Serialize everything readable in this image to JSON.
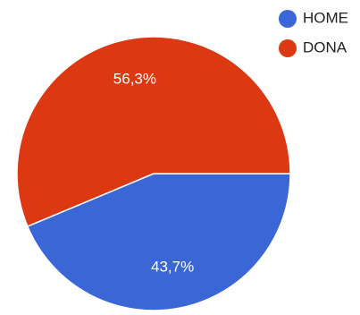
{
  "chart_data": {
    "type": "pie",
    "legend_position": "top-right",
    "slices": [
      {
        "label": "HOME",
        "value": 43.7,
        "value_label": "43,7%",
        "color": "#3b67d6"
      },
      {
        "label": "DONA",
        "value": 56.3,
        "value_label": "56,3%",
        "color": "#dc3912"
      }
    ]
  }
}
